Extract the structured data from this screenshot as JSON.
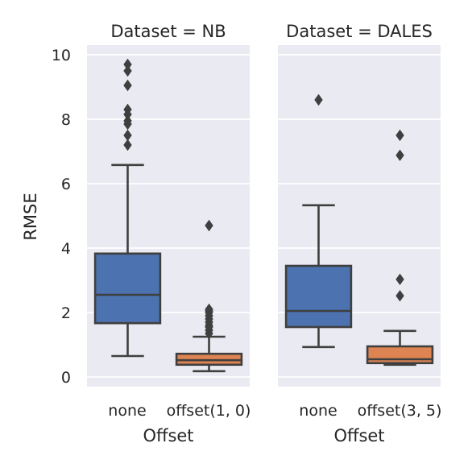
{
  "chart_data": {
    "type": "box",
    "ylabel": "RMSE",
    "ylim": [
      -0.3,
      10.3
    ],
    "yticks": [
      0,
      2,
      4,
      6,
      8,
      10
    ],
    "grid": true,
    "background": "#eaeaf2",
    "gridcolor": "#ffffff",
    "linecolor": "#3f3f3f",
    "colors": [
      "#4c72b0",
      "#dd8452"
    ],
    "panels": [
      {
        "title": "Dataset = NB",
        "xlabel": "Offset",
        "categories": [
          "none",
          "offset(1, 0)"
        ],
        "boxes": [
          {
            "category": "none",
            "whisker_low": 0.65,
            "q1": 1.67,
            "median": 2.55,
            "q3": 3.83,
            "whisker_high": 6.58,
            "outliers": [
              7.2,
              7.5,
              7.85,
              7.95,
              8.15,
              8.3,
              9.05,
              9.5,
              9.7
            ]
          },
          {
            "category": "offset(1, 0)",
            "whisker_low": 0.18,
            "q1": 0.38,
            "median": 0.52,
            "q3": 0.72,
            "whisker_high": 1.25,
            "outliers": [
              1.35,
              1.45,
              1.55,
              1.6,
              1.7,
              1.8,
              1.9,
              2.0,
              2.05,
              2.1,
              4.7
            ]
          }
        ]
      },
      {
        "title": "Dataset = DALES",
        "xlabel": "Offset",
        "categories": [
          "none",
          "offset(3, 5)"
        ],
        "boxes": [
          {
            "category": "none",
            "whisker_low": 0.93,
            "q1": 1.55,
            "median": 2.05,
            "q3": 3.45,
            "whisker_high": 5.33,
            "outliers": [
              8.6
            ]
          },
          {
            "category": "offset(3, 5)",
            "whisker_low": 0.38,
            "q1": 0.43,
            "median": 0.55,
            "q3": 0.95,
            "whisker_high": 1.43,
            "outliers": [
              2.52,
              3.03,
              6.88,
              7.5
            ]
          }
        ]
      }
    ]
  }
}
